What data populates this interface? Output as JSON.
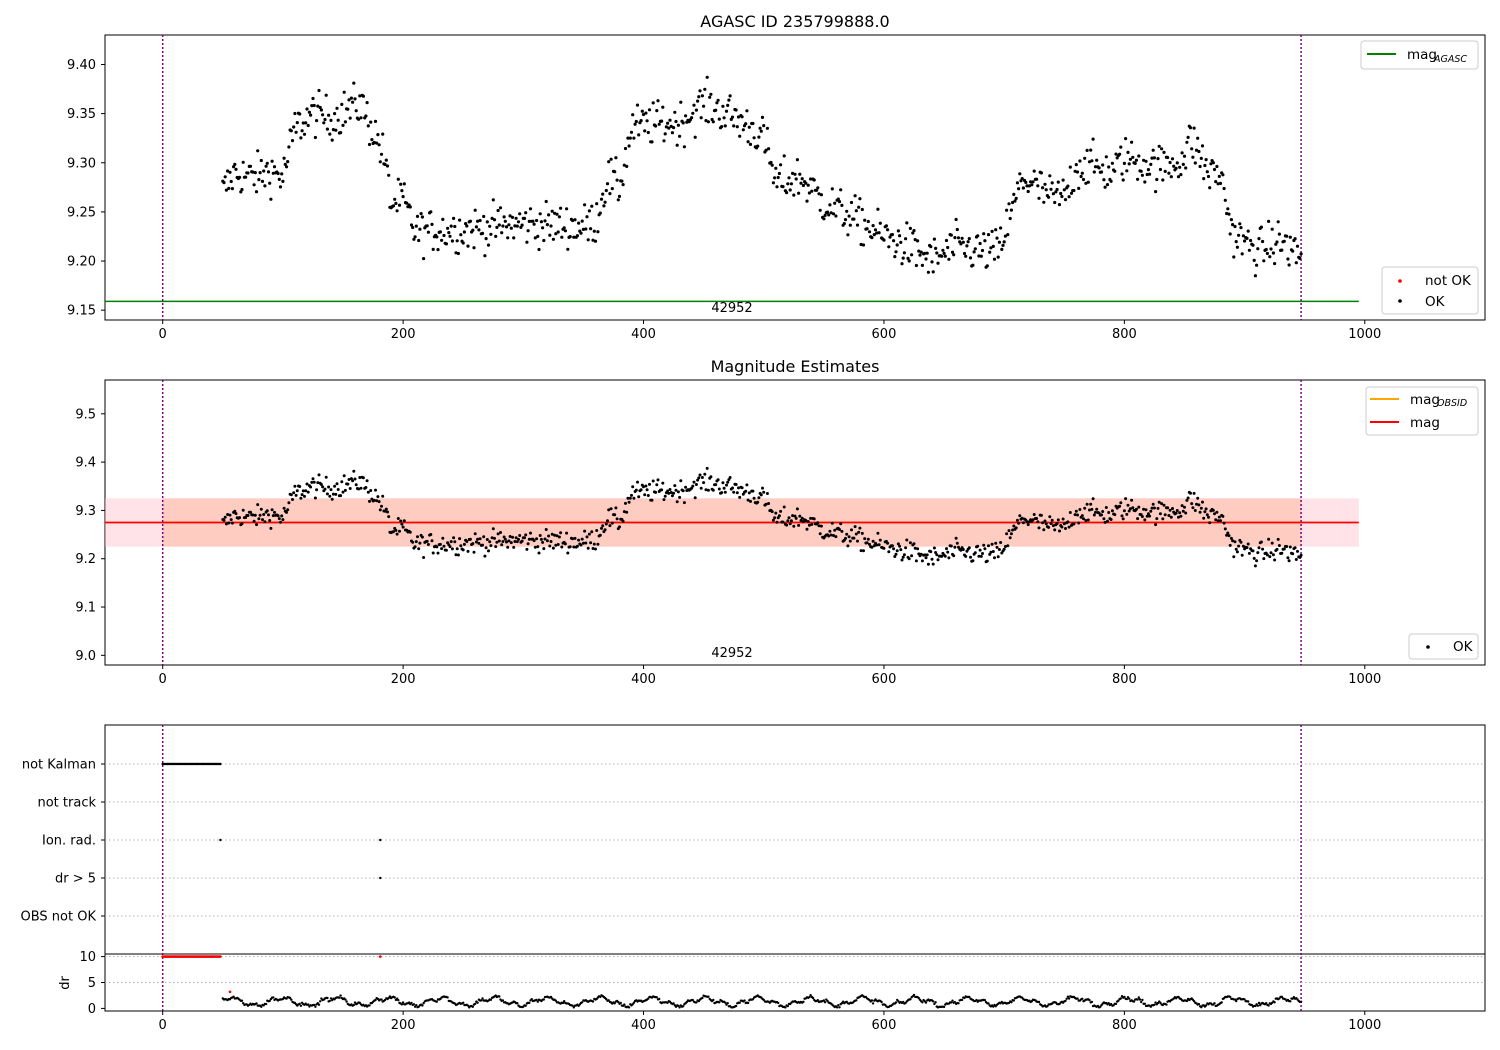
{
  "figure": {
    "panel1_title": "AGASC ID 235799888.0",
    "panel2_title": "Magnitude Estimates",
    "obsid_label": "42952"
  },
  "colors": {
    "ok": "#000000",
    "not_ok": "#ff0000",
    "mag_agasc": "#008000",
    "mag_obsid": "#ffa500",
    "mag": "#ff0000",
    "mag_band": "#ffc0cb",
    "obsid_band": "#ffa07a",
    "boundary": "#800080",
    "grid": "#b0b0b0"
  },
  "legends": {
    "panel1_top": {
      "mag_agasc_main": "mag",
      "mag_agasc_sub": "AGASC"
    },
    "panel1_bottom": {
      "not_ok": "not OK",
      "ok": "OK"
    },
    "panel2_top": {
      "mag_obsid_main": "mag",
      "mag_obsid_sub": "OBSID",
      "mag": "mag"
    },
    "panel2_bottom": {
      "ok": "OK"
    }
  },
  "chart_data": [
    {
      "type": "scatter",
      "title": "AGASC ID 235799888.0",
      "xlabel": "",
      "ylabel": "",
      "xlim": [
        -48,
        1100
      ],
      "ylim": [
        9.14,
        9.43
      ],
      "xticks": [
        0,
        200,
        400,
        600,
        800,
        1000
      ],
      "yticks": [
        9.15,
        9.2,
        9.25,
        9.3,
        9.35,
        9.4
      ],
      "ytick_labels": [
        "9.15",
        "9.20",
        "9.25",
        "9.30",
        "9.35",
        "9.40"
      ],
      "annotations": [
        "42952"
      ],
      "mag_agasc": 9.159,
      "obs_boundaries_x": [
        0,
        947
      ],
      "ok_x_range": [
        50,
        947
      ],
      "series": [
        {
          "name": "mag",
          "label_sub": "AGASC",
          "kind": "hline",
          "y": 9.159,
          "x_range": [
            -48,
            995
          ]
        },
        {
          "name": "not OK",
          "kind": "points",
          "values": []
        },
        {
          "name": "OK",
          "kind": "points",
          "trend_x": [
            50,
            60,
            75,
            90,
            100,
            110,
            125,
            140,
            155,
            165,
            172,
            180,
            185,
            190,
            200,
            210,
            250,
            300,
            350,
            360,
            370,
            380,
            390,
            410,
            430,
            450,
            470,
            490,
            500,
            510,
            530,
            550,
            580,
            600,
            620,
            640,
            660,
            680,
            695,
            705,
            715,
            740,
            750,
            760,
            770,
            790,
            800,
            830,
            850,
            855,
            870,
            880,
            890,
            910,
            930,
            947
          ],
          "trend_y": [
            9.27,
            9.29,
            9.285,
            9.292,
            9.285,
            9.335,
            9.35,
            9.345,
            9.355,
            9.36,
            9.34,
            9.32,
            9.3,
            9.258,
            9.262,
            9.23,
            9.232,
            9.238,
            9.235,
            9.24,
            9.285,
            9.275,
            9.335,
            9.34,
            9.34,
            9.36,
            9.35,
            9.335,
            9.325,
            9.28,
            9.285,
            9.26,
            9.24,
            9.225,
            9.215,
            9.2,
            9.215,
            9.21,
            9.21,
            9.245,
            9.285,
            9.265,
            9.265,
            9.295,
            9.298,
            9.29,
            9.305,
            9.295,
            9.305,
            9.325,
            9.29,
            9.288,
            9.228,
            9.21,
            9.22,
            9.205
          ],
          "noise": 0.011
        }
      ]
    },
    {
      "type": "scatter",
      "title": "Magnitude Estimates",
      "xlabel": "",
      "ylabel": "",
      "xlim": [
        -48,
        1100
      ],
      "ylim": [
        8.98,
        9.57
      ],
      "xticks": [
        0,
        200,
        400,
        600,
        800,
        1000
      ],
      "yticks": [
        9.0,
        9.1,
        9.2,
        9.3,
        9.4,
        9.5
      ],
      "ytick_labels": [
        "9.0",
        "9.1",
        "9.2",
        "9.3",
        "9.4",
        "9.5"
      ],
      "annotations": [
        "42952"
      ],
      "mag": 9.275,
      "mag_band": [
        9.225,
        9.325
      ],
      "obsid_band": [
        9.225,
        9.325
      ],
      "series": [
        {
          "name": "mag",
          "label_sub": "OBSID",
          "kind": "hline",
          "y": 9.275,
          "x_range": [
            0,
            947
          ]
        },
        {
          "name": "mag",
          "kind": "hline",
          "y": 9.275,
          "x_range": [
            -48,
            995
          ]
        },
        {
          "name": "OK",
          "kind": "points",
          "same_as_panel": 0
        }
      ]
    },
    {
      "type": "scatter",
      "title": "",
      "xlabel": "",
      "ylabel": "",
      "xlim": [
        -48,
        1100
      ],
      "xticks": [
        0,
        200,
        400,
        600,
        800,
        1000
      ],
      "categories": [
        "not Kalman",
        "not track",
        "Ion. rad.",
        "dr > 5",
        "OBS not OK"
      ],
      "flags": {
        "not Kalman": {
          "x_range": [
            0,
            48
          ]
        },
        "not track": {
          "x": []
        },
        "Ion. rad.": {
          "x": [
            48,
            181
          ]
        },
        "dr > 5": {
          "x": [
            181
          ]
        },
        "OBS not OK": {
          "x": []
        }
      }
    },
    {
      "type": "scatter",
      "title": "",
      "xlabel": "",
      "ylabel": "dr",
      "xlim": [
        -48,
        1100
      ],
      "ylim": [
        -0.5,
        10.5
      ],
      "xticks": [
        0,
        200,
        400,
        600,
        800,
        1000
      ],
      "yticks": [
        0,
        5,
        10
      ],
      "ytick_labels": [
        "0",
        "5",
        "10"
      ],
      "series": [
        {
          "name": "dr clipped (not OK)",
          "color": "red",
          "x_range": [
            0,
            48
          ],
          "y": 10,
          "extra_x": [
            181
          ]
        },
        {
          "name": "dr",
          "color": "black",
          "x_range": [
            50,
            947
          ],
          "y_range": [
            0.2,
            2.6
          ],
          "outliers": [
            [
              56,
              3.2
            ]
          ]
        }
      ]
    }
  ]
}
